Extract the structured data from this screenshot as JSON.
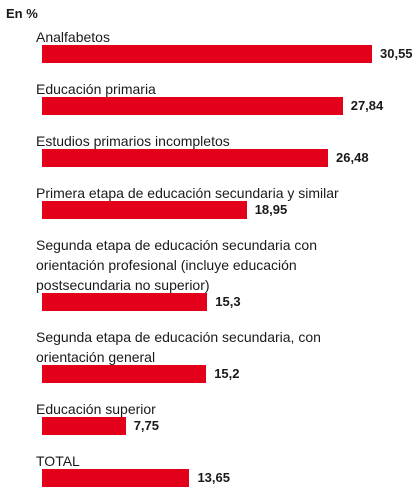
{
  "chart_data": {
    "type": "bar",
    "orientation": "horizontal",
    "title": "En %",
    "categories": [
      "Analfabetos",
      "Educación primaria",
      "Estudios primarios incompletos",
      "Primera etapa de educación secundaria y similar",
      "Segunda etapa de educación secundaria con\norientación profesional (incluye educación\npostsecundaria no superior)",
      "Segunda etapa de educación secundaria, con\norientación general",
      "Educación superior",
      "TOTAL"
    ],
    "values": [
      30.55,
      27.84,
      26.48,
      18.95,
      15.3,
      15.2,
      7.75,
      13.65
    ],
    "value_labels": [
      "30,55",
      "27,84",
      "26,48",
      "18,95",
      "15,3",
      "15,2",
      "7,75",
      "13,65"
    ],
    "color": "#e2001a"
  }
}
